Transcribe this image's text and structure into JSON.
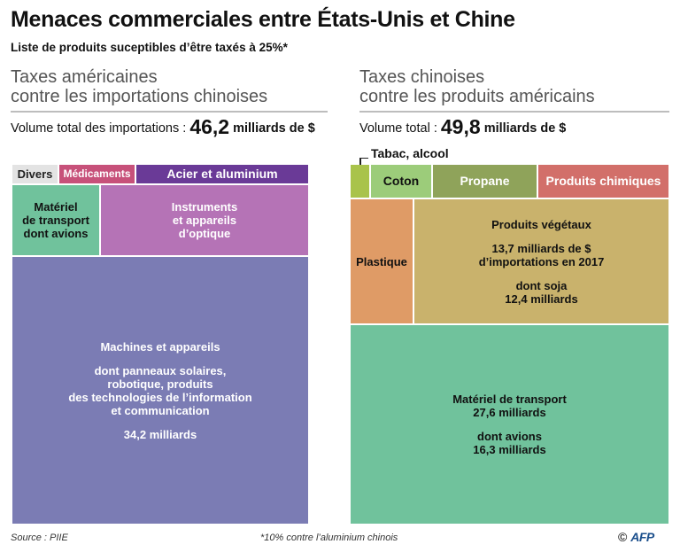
{
  "title": "Menaces commerciales entre États-Unis et Chine",
  "subtitle": "Liste de produits suceptibles d’être taxés à 25%*",
  "left_panel": {
    "title_line1": "Taxes américaines",
    "title_line2": "contre les importations chinoises",
    "volume_label": "Volume total des importations :",
    "volume_value": "46,2",
    "volume_unit": "milliards de $"
  },
  "right_panel": {
    "title_line1": "Taxes chinoises",
    "title_line2": "contre les produits américains",
    "volume_label": "Volume total :",
    "volume_value": "49,8",
    "volume_unit": "milliards de $",
    "callout": "Tabac, alcool"
  },
  "footer": {
    "source": "Source : PIIE",
    "note": "*10% contre l’aluminium chinois",
    "copyright": "©",
    "logo": "AFP"
  },
  "colors": {
    "divers": "#e3e3e3",
    "medicaments": "#c7517a",
    "acier": "#6a3a97",
    "materiel_left": "#70c29c",
    "instruments": "#b573b6",
    "machines": "#7b7cb4",
    "tabac": "#a9c34b",
    "coton": "#9ccc7a",
    "propane": "#8fa35a",
    "chimiques": "#d26f6a",
    "plastique": "#df9b66",
    "vegetaux": "#c9b26c",
    "materiel_right": "#70c29c"
  },
  "chart_data": [
    {
      "type": "treemap",
      "title": "Taxes américaines contre les importations chinoises",
      "total": 46.2,
      "unit": "milliards de $",
      "items": [
        {
          "name": "Divers",
          "lines": [
            "Divers"
          ]
        },
        {
          "name": "Médicaments",
          "lines": [
            "Médicaments"
          ]
        },
        {
          "name": "Acier et aluminium",
          "lines": [
            "Acier et aluminium"
          ]
        },
        {
          "name": "Matériel de transport",
          "lines": [
            "Matériel\nde transport\ndont avions"
          ]
        },
        {
          "name": "Instruments et appareils d’optique",
          "lines": [
            "Instruments\net appareils\nd’optique"
          ]
        },
        {
          "name": "Machines et appareils",
          "value": 34.2,
          "lines": [
            "Machines et appareils",
            "dont panneaux solaires,\nrobotique, produits\ndes technologies de l’information\net communication",
            "34,2 milliards"
          ]
        }
      ]
    },
    {
      "type": "treemap",
      "title": "Taxes chinoises contre les produits américains",
      "total": 49.8,
      "unit": "milliards de $",
      "items": [
        {
          "name": "Tabac, alcool",
          "lines": []
        },
        {
          "name": "Coton",
          "lines": [
            "Coton"
          ]
        },
        {
          "name": "Propane",
          "lines": [
            "Propane"
          ]
        },
        {
          "name": "Produits chimiques",
          "lines": [
            "Produits chimiques"
          ]
        },
        {
          "name": "Plastique",
          "lines": [
            "Plastique"
          ]
        },
        {
          "name": "Produits végétaux",
          "value": 13.7,
          "sub_value": 12.4,
          "lines": [
            "Produits végétaux",
            "13,7 milliards de $\nd’importations en 2017",
            "dont soja\n12,4 milliards"
          ]
        },
        {
          "name": "Matériel de transport",
          "value": 27.6,
          "sub_value": 16.3,
          "lines": [
            "Matériel de transport\n27,6 milliards",
            "dont avions\n16,3 milliards"
          ]
        }
      ]
    }
  ]
}
